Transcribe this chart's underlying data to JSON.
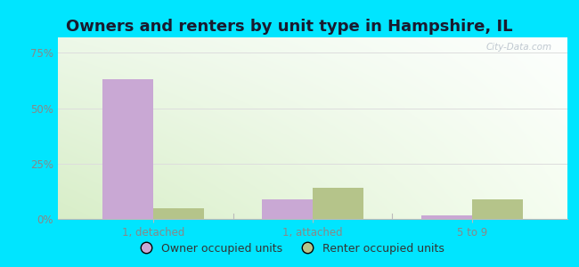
{
  "title": "Owners and renters by unit type in Hampshire, IL",
  "categories": [
    "1, detached",
    "1, attached",
    "5 to 9"
  ],
  "owner_values": [
    63,
    9,
    1.5
  ],
  "renter_values": [
    5,
    14,
    9
  ],
  "owner_color": "#c9a8d4",
  "renter_color": "#b5c48a",
  "yticks": [
    0,
    25,
    50,
    75
  ],
  "ytick_labels": [
    "0%",
    "25%",
    "50%",
    "75%"
  ],
  "ylim": [
    0,
    82
  ],
  "bar_width": 0.32,
  "outer_bg": "#00e5ff",
  "title_fontsize": 13,
  "legend_owner_label": "Owner occupied units",
  "legend_renter_label": "Renter occupied units",
  "watermark": "City-Data.com",
  "bg_colors": [
    "#e0f0d0",
    "#f5fdf0",
    "#f5fdf5",
    "#fafffe"
  ],
  "tick_color": "#888888",
  "grid_color": "#dddddd",
  "spine_color": "#bbbbbb"
}
